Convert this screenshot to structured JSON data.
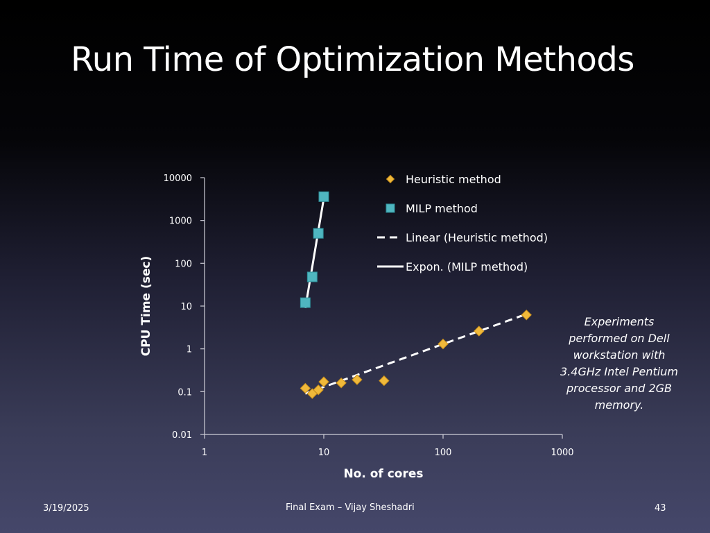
{
  "slide": {
    "title": "Run Time of Optimization Methods",
    "note": "Experiments performed on Dell workstation with 3.4GHz Intel Pentium processor and 2GB memory.",
    "footer": {
      "date": "3/19/2025",
      "center": "Final Exam – Vijay Sheshadri",
      "page": "43"
    }
  },
  "colors": {
    "heuristic": "#f0b93a",
    "milp": "#4fb6c0",
    "trendline": "#ffffff",
    "axis": "#cfcfd8"
  },
  "chart_data": {
    "type": "scatter",
    "xlabel": "No. of cores",
    "ylabel": "CPU Time (sec)",
    "xscale": "log",
    "yscale": "log",
    "xlim": [
      1,
      1000
    ],
    "ylim": [
      0.01,
      10000
    ],
    "xticks": [
      "1",
      "10",
      "100",
      "1000"
    ],
    "yticks": [
      "10000",
      "1000",
      "100",
      "10",
      "1",
      "0.1",
      "0.01"
    ],
    "legend_position": "top-right",
    "grid": false,
    "series": [
      {
        "name": "Heuristic method",
        "marker": "diamond",
        "points": [
          {
            "x": 7,
            "y": 0.12
          },
          {
            "x": 8,
            "y": 0.09
          },
          {
            "x": 9,
            "y": 0.11
          },
          {
            "x": 10,
            "y": 0.17
          },
          {
            "x": 14,
            "y": 0.16
          },
          {
            "x": 19,
            "y": 0.19
          },
          {
            "x": 32,
            "y": 0.18
          },
          {
            "x": 100,
            "y": 1.3
          },
          {
            "x": 200,
            "y": 2.6
          },
          {
            "x": 500,
            "y": 6.2
          }
        ]
      },
      {
        "name": "MILP method",
        "marker": "square",
        "points": [
          {
            "x": 7,
            "y": 12
          },
          {
            "x": 8,
            "y": 48
          },
          {
            "x": 9,
            "y": 500
          },
          {
            "x": 10,
            "y": 3600
          }
        ]
      }
    ],
    "trendlines": [
      {
        "name": "Linear (Heuristic method)",
        "style": "dashed",
        "from": {
          "x": 7,
          "y": 0.09
        },
        "to": {
          "x": 500,
          "y": 6.5
        }
      },
      {
        "name": "Expon. (MILP method)",
        "style": "solid",
        "from": {
          "x": 7,
          "y": 9
        },
        "to": {
          "x": 10,
          "y": 3300
        }
      }
    ]
  }
}
